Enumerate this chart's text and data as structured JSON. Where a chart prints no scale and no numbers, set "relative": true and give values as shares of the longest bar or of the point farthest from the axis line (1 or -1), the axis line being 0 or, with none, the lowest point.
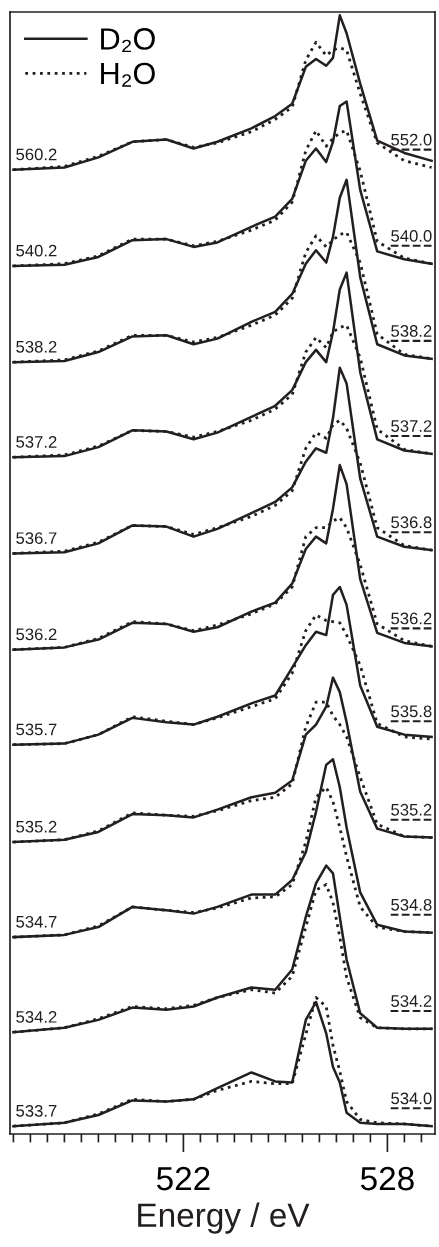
{
  "chart_data": {
    "type": "line",
    "relative": true,
    "xlabel": "Energy / eV",
    "xlim": [
      516.9,
      529.4
    ],
    "xticks": [
      {
        "value": 517,
        "label": null
      },
      {
        "value": 517.5,
        "label": null
      },
      {
        "value": 518,
        "label": null
      },
      {
        "value": 518.5,
        "label": null
      },
      {
        "value": 519,
        "label": null
      },
      {
        "value": 519.5,
        "label": null
      },
      {
        "value": 520,
        "label": null
      },
      {
        "value": 520.5,
        "label": null
      },
      {
        "value": 521,
        "label": null
      },
      {
        "value": 521.5,
        "label": null
      },
      522,
      {
        "value": 522.5,
        "label": null
      },
      {
        "value": 523,
        "label": null
      },
      {
        "value": 523.5,
        "label": null
      },
      {
        "value": 524,
        "label": null
      },
      {
        "value": 524.5,
        "label": null
      },
      {
        "value": 525,
        "label": null
      },
      {
        "value": 525.5,
        "label": null
      },
      {
        "value": 526,
        "label": null
      },
      {
        "value": 526.5,
        "label": null
      },
      {
        "value": 527,
        "label": null
      },
      {
        "value": 527.5,
        "label": null
      },
      528,
      {
        "value": 528.5,
        "label": null
      },
      {
        "value": 529,
        "label": null
      }
    ],
    "grid": false,
    "legend": "top left",
    "x": [
      517,
      518.5,
      519.5,
      520.5,
      521.5,
      522.3,
      523,
      524,
      524.7,
      525.2,
      525.6,
      525.9,
      526.2,
      526.4,
      526.6,
      526.8,
      527.2,
      527.7,
      528.5,
      529.3
    ],
    "series": [
      {
        "name": "D₂O",
        "color": "#231f20",
        "line_style": "solid",
        "values": [
          0.862,
          0.864,
          0.873,
          0.887,
          0.889,
          0.881,
          0.887,
          0.899,
          0.91,
          0.921,
          0.954,
          0.961,
          0.955,
          0.962,
          1,
          0.984,
          0.939,
          0.888,
          0.877,
          0.87
        ]
      },
      {
        "name": "H₂O",
        "color": "#231f20",
        "line_style": "dotted",
        "values": [
          0.862,
          0.865,
          0.874,
          0.887,
          0.889,
          0.882,
          0.886,
          0.896,
          0.907,
          0.918,
          0.96,
          0.976,
          0.964,
          0.969,
          0.971,
          0.969,
          0.93,
          0.886,
          0.87,
          0.864
        ]
      },
      {
        "color": "#231f20",
        "line_style": "solid",
        "values": [
          0.776,
          0.777,
          0.784,
          0.799,
          0.8,
          0.793,
          0.797,
          0.811,
          0.82,
          0.836,
          0.87,
          0.881,
          0.869,
          0.887,
          0.919,
          0.923,
          0.844,
          0.789,
          0.782,
          0.778
        ]
      },
      {
        "color": "#231f20",
        "line_style": "dotted",
        "values": [
          0.776,
          0.778,
          0.785,
          0.8,
          0.8,
          0.794,
          0.798,
          0.808,
          0.817,
          0.833,
          0.879,
          0.897,
          0.883,
          0.89,
          0.895,
          0.897,
          0.861,
          0.798,
          0.783,
          0.778
        ]
      },
      {
        "color": "#231f20",
        "line_style": "solid",
        "values": [
          0.69,
          0.691,
          0.699,
          0.713,
          0.714,
          0.706,
          0.711,
          0.726,
          0.735,
          0.751,
          0.778,
          0.79,
          0.779,
          0.802,
          0.837,
          0.853,
          0.766,
          0.706,
          0.696,
          0.693
        ]
      },
      {
        "color": "#231f20",
        "line_style": "dotted",
        "values": [
          0.69,
          0.692,
          0.7,
          0.714,
          0.714,
          0.708,
          0.712,
          0.723,
          0.732,
          0.747,
          0.788,
          0.803,
          0.793,
          0.799,
          0.804,
          0.806,
          0.779,
          0.715,
          0.697,
          0.693
        ]
      },
      {
        "color": "#231f20",
        "line_style": "solid",
        "values": [
          0.605,
          0.606,
          0.614,
          0.629,
          0.628,
          0.621,
          0.627,
          0.641,
          0.651,
          0.665,
          0.69,
          0.701,
          0.69,
          0.717,
          0.755,
          0.77,
          0.681,
          0.621,
          0.611,
          0.608
        ]
      },
      {
        "color": "#231f20",
        "line_style": "dotted",
        "values": [
          0.605,
          0.607,
          0.615,
          0.629,
          0.628,
          0.623,
          0.628,
          0.638,
          0.648,
          0.661,
          0.699,
          0.712,
          0.703,
          0.717,
          0.721,
          0.723,
          0.694,
          0.63,
          0.612,
          0.608
        ]
      },
      {
        "color": "#231f20",
        "line_style": "solid",
        "values": [
          0.519,
          0.52,
          0.528,
          0.544,
          0.543,
          0.534,
          0.541,
          0.555,
          0.565,
          0.578,
          0.601,
          0.613,
          0.609,
          0.64,
          0.685,
          0.671,
          0.586,
          0.534,
          0.525,
          0.522
        ]
      },
      {
        "color": "#231f20",
        "line_style": "dotted",
        "values": [
          0.519,
          0.521,
          0.529,
          0.544,
          0.543,
          0.536,
          0.542,
          0.552,
          0.562,
          0.575,
          0.613,
          0.627,
          0.622,
          0.634,
          0.638,
          0.631,
          0.6,
          0.542,
          0.526,
          0.522
        ]
      },
      {
        "color": "#231f20",
        "line_style": "solid",
        "values": [
          0.433,
          0.435,
          0.442,
          0.457,
          0.456,
          0.449,
          0.453,
          0.467,
          0.475,
          0.492,
          0.523,
          0.534,
          0.528,
          0.559,
          0.598,
          0.581,
          0.496,
          0.448,
          0.439,
          0.436
        ]
      },
      {
        "color": "#231f20",
        "line_style": "dotted",
        "values": [
          0.433,
          0.435,
          0.443,
          0.458,
          0.456,
          0.45,
          0.455,
          0.465,
          0.474,
          0.489,
          0.534,
          0.542,
          0.542,
          0.548,
          0.551,
          0.542,
          0.509,
          0.456,
          0.441,
          0.436
        ]
      },
      {
        "color": "#231f20",
        "line_style": "solid",
        "values": [
          0.348,
          0.349,
          0.357,
          0.372,
          0.368,
          0.366,
          0.373,
          0.385,
          0.392,
          0.417,
          0.437,
          0.449,
          0.446,
          0.482,
          0.489,
          0.473,
          0.401,
          0.364,
          0.357,
          0.355
        ]
      },
      {
        "color": "#231f20",
        "line_style": "dotted",
        "values": [
          0.348,
          0.349,
          0.357,
          0.373,
          0.369,
          0.366,
          0.372,
          0.382,
          0.389,
          0.412,
          0.45,
          0.464,
          0.459,
          0.458,
          0.457,
          0.446,
          0.419,
          0.367,
          0.355,
          0.353
        ]
      },
      {
        "color": "#231f20",
        "line_style": "solid",
        "values": [
          0.261,
          0.263,
          0.27,
          0.286,
          0.285,
          0.283,
          0.29,
          0.301,
          0.305,
          0.316,
          0.357,
          0.366,
          0.382,
          0.408,
          0.395,
          0.368,
          0.306,
          0.273,
          0.266,
          0.265
        ]
      },
      {
        "color": "#231f20",
        "line_style": "dotted",
        "values": [
          0.261,
          0.263,
          0.271,
          0.287,
          0.285,
          0.284,
          0.289,
          0.298,
          0.301,
          0.313,
          0.364,
          0.386,
          0.386,
          0.374,
          0.366,
          0.355,
          0.319,
          0.277,
          0.266,
          0.265
        ]
      },
      {
        "color": "#231f20",
        "line_style": "solid",
        "values": [
          0.176,
          0.178,
          0.185,
          0.203,
          0.2,
          0.197,
          0.203,
          0.214,
          0.214,
          0.227,
          0.252,
          0.288,
          0.33,
          0.335,
          0.31,
          0.274,
          0.216,
          0.187,
          0.181,
          0.18
        ]
      },
      {
        "color": "#231f20",
        "line_style": "dotted",
        "values": [
          0.176,
          0.178,
          0.186,
          0.203,
          0.2,
          0.198,
          0.202,
          0.211,
          0.212,
          0.223,
          0.261,
          0.301,
          0.31,
          0.297,
          0.274,
          0.248,
          0.203,
          0.185,
          0.181,
          0.18
        ]
      },
      {
        "color": "#231f20",
        "line_style": "solid",
        "values": [
          0.091,
          0.095,
          0.102,
          0.113,
          0.111,
          0.114,
          0.122,
          0.131,
          0.129,
          0.147,
          0.194,
          0.224,
          0.24,
          0.233,
          0.194,
          0.156,
          0.108,
          0.095,
          0.094,
          0.094
        ]
      },
      {
        "color": "#231f20",
        "line_style": "dotted",
        "values": [
          0.091,
          0.095,
          0.103,
          0.114,
          0.112,
          0.115,
          0.122,
          0.129,
          0.126,
          0.141,
          0.185,
          0.218,
          0.223,
          0.207,
          0.176,
          0.14,
          0.104,
          0.095,
          0.094,
          0.094
        ]
      },
      {
        "color": "#231f20",
        "line_style": "solid",
        "values": [
          0.007,
          0.01,
          0.017,
          0.03,
          0.029,
          0.031,
          0.041,
          0.055,
          0.047,
          0.046,
          0.102,
          0.118,
          0.09,
          0.06,
          0.046,
          0.019,
          0.01,
          0.009,
          0.009,
          0.007
        ]
      },
      {
        "color": "#231f20",
        "line_style": "dotted",
        "values": [
          0.007,
          0.01,
          0.018,
          0.031,
          0.029,
          0.031,
          0.039,
          0.047,
          0.045,
          0.045,
          0.089,
          0.122,
          0.114,
          0.079,
          0.056,
          0.029,
          0.013,
          0.01,
          0.009,
          0.007
        ]
      }
    ],
    "annotations": [
      "560.2",
      "540.2",
      "538.2",
      "537.2",
      "536.7",
      "536.2",
      "535.7",
      "535.2",
      "534.7",
      "534.2",
      "533.7",
      "552.0",
      "540.0",
      "538.2",
      "537.2",
      "536.8",
      "536.2",
      "535.8",
      "535.2",
      "534.8",
      "534.2",
      "534.0"
    ]
  }
}
